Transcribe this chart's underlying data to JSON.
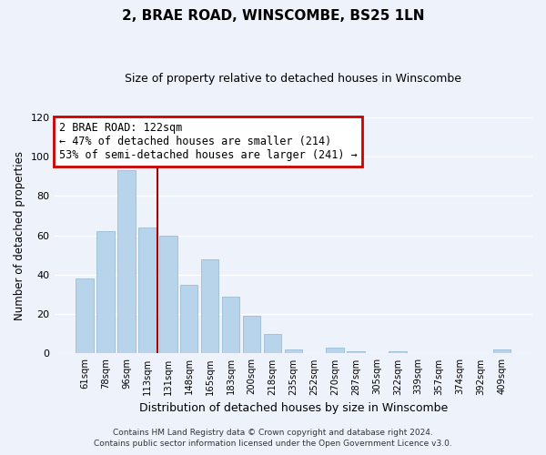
{
  "title": "2, BRAE ROAD, WINSCOMBE, BS25 1LN",
  "subtitle": "Size of property relative to detached houses in Winscombe",
  "xlabel": "Distribution of detached houses by size in Winscombe",
  "ylabel": "Number of detached properties",
  "bar_labels": [
    "61sqm",
    "78sqm",
    "96sqm",
    "113sqm",
    "131sqm",
    "148sqm",
    "165sqm",
    "183sqm",
    "200sqm",
    "218sqm",
    "235sqm",
    "252sqm",
    "270sqm",
    "287sqm",
    "305sqm",
    "322sqm",
    "339sqm",
    "357sqm",
    "374sqm",
    "392sqm",
    "409sqm"
  ],
  "bar_values": [
    38,
    62,
    93,
    64,
    60,
    35,
    48,
    29,
    19,
    10,
    2,
    0,
    3,
    1,
    0,
    1,
    0,
    0,
    0,
    0,
    2
  ],
  "bar_color": "#b8d4ea",
  "bar_edge_color": "#9bbdd6",
  "vline_x": 3.5,
  "vline_color": "#aa0000",
  "annotation_title": "2 BRAE ROAD: 122sqm",
  "annotation_line1": "← 47% of detached houses are smaller (214)",
  "annotation_line2": "53% of semi-detached houses are larger (241) →",
  "annotation_box_color": "#ffffff",
  "annotation_box_edge": "#cc0000",
  "ylim": [
    0,
    120
  ],
  "yticks": [
    0,
    20,
    40,
    60,
    80,
    100,
    120
  ],
  "footer1": "Contains HM Land Registry data © Crown copyright and database right 2024.",
  "footer2": "Contains public sector information licensed under the Open Government Licence v3.0.",
  "background_color": "#eef2fa",
  "grid_color": "#ffffff"
}
